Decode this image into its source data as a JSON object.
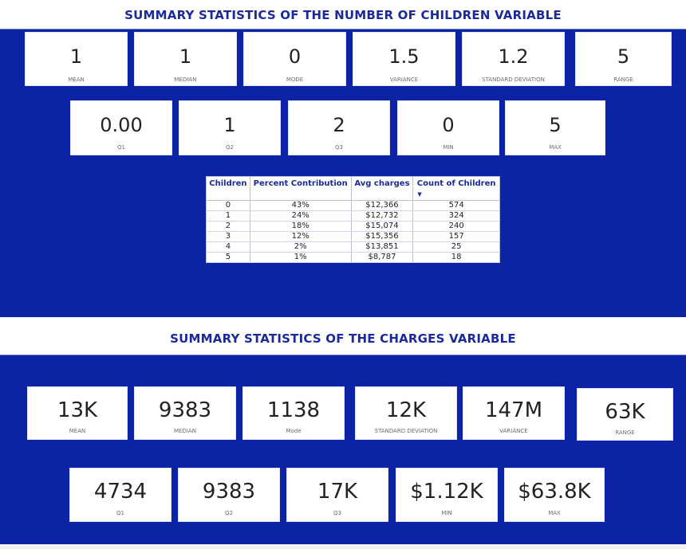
{
  "children_section": {
    "title": "SUMMARY STATISTICS OF THE NUMBER OF CHILDREN VARIABLE",
    "row1": [
      {
        "value": "1",
        "label": "MEAN"
      },
      {
        "value": "1",
        "label": "MEDIAN"
      },
      {
        "value": "0",
        "label": "MODE"
      },
      {
        "value": "1.5",
        "label": "VARIANCE"
      },
      {
        "value": "1.2",
        "label": "STANDARD DEVIATION"
      },
      {
        "value": "5",
        "label": "RANGE"
      }
    ],
    "row2": [
      {
        "value": "0.00",
        "label": "Q1"
      },
      {
        "value": "1",
        "label": "Q2"
      },
      {
        "value": "2",
        "label": "Q3"
      },
      {
        "value": "0",
        "label": "MIN"
      },
      {
        "value": "5",
        "label": "MAX"
      }
    ],
    "table": {
      "headers": [
        "Children",
        "Percent Contribution",
        "Avg charges",
        "Count of Children"
      ],
      "sort_column": "Count of Children",
      "sort_direction": "descending",
      "rows": [
        [
          "0",
          "43%",
          "$12,366",
          "574"
        ],
        [
          "1",
          "24%",
          "$12,732",
          "324"
        ],
        [
          "2",
          "18%",
          "$15,074",
          "240"
        ],
        [
          "3",
          "12%",
          "$15,356",
          "157"
        ],
        [
          "4",
          "2%",
          "$13,851",
          "25"
        ],
        [
          "5",
          "1%",
          "$8,787",
          "18"
        ]
      ]
    }
  },
  "charges_section": {
    "title": "SUMMARY STATISTICS OF THE CHARGES VARIABLE",
    "row1": [
      {
        "value": "13K",
        "label": "MEAN"
      },
      {
        "value": "9383",
        "label": "MEDIAN"
      },
      {
        "value": "1138",
        "label": "Mode"
      },
      {
        "value": "12K",
        "label": "STANDARD DEVIATION"
      },
      {
        "value": "147M",
        "label": "VARIANCE"
      },
      {
        "value": "63K",
        "label": "RANGE"
      }
    ],
    "row2": [
      {
        "value": "4734",
        "label": "Q1"
      },
      {
        "value": "9383",
        "label": "Q2"
      },
      {
        "value": "17K",
        "label": "Q3"
      },
      {
        "value": "$1.12K",
        "label": "MIN"
      },
      {
        "value": "$63.8K",
        "label": "MAX"
      }
    ]
  },
  "colors": {
    "band": "#0d23a5",
    "title": "#1a2a9c",
    "card": "#ffffff"
  }
}
